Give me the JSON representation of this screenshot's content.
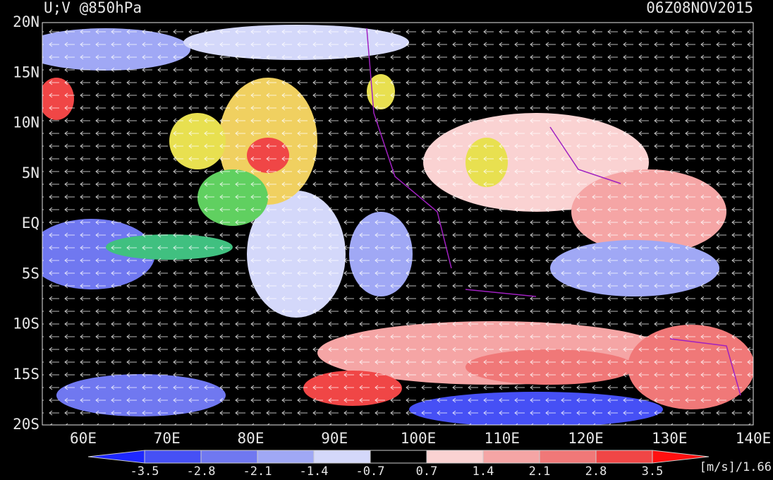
{
  "title": "U;V @850hPa",
  "time": "06Z08NOV2015",
  "lat_labels": [
    "20N",
    "15N",
    "10N",
    "5N",
    "EQ",
    "5S",
    "10S",
    "15S",
    "20S"
  ],
  "lon_labels": [
    "60E",
    "70E",
    "80E",
    "90E",
    "100E",
    "110E",
    "120E",
    "130E",
    "140E"
  ],
  "colorbar": {
    "levels": [
      -3.5,
      -2.8,
      -2.1,
      -1.4,
      -0.7,
      0.7,
      1.4,
      2.1,
      2.8,
      3.5
    ],
    "colors": [
      "#1e28ff",
      "#4650f5",
      "#7078f0",
      "#a0a8f5",
      "#d4d8fa",
      "#000000",
      "#fad2d2",
      "#f5a5a5",
      "#f07878",
      "#f04646",
      "#ff1010"
    ]
  },
  "units": "[m/s]/1.66"
}
